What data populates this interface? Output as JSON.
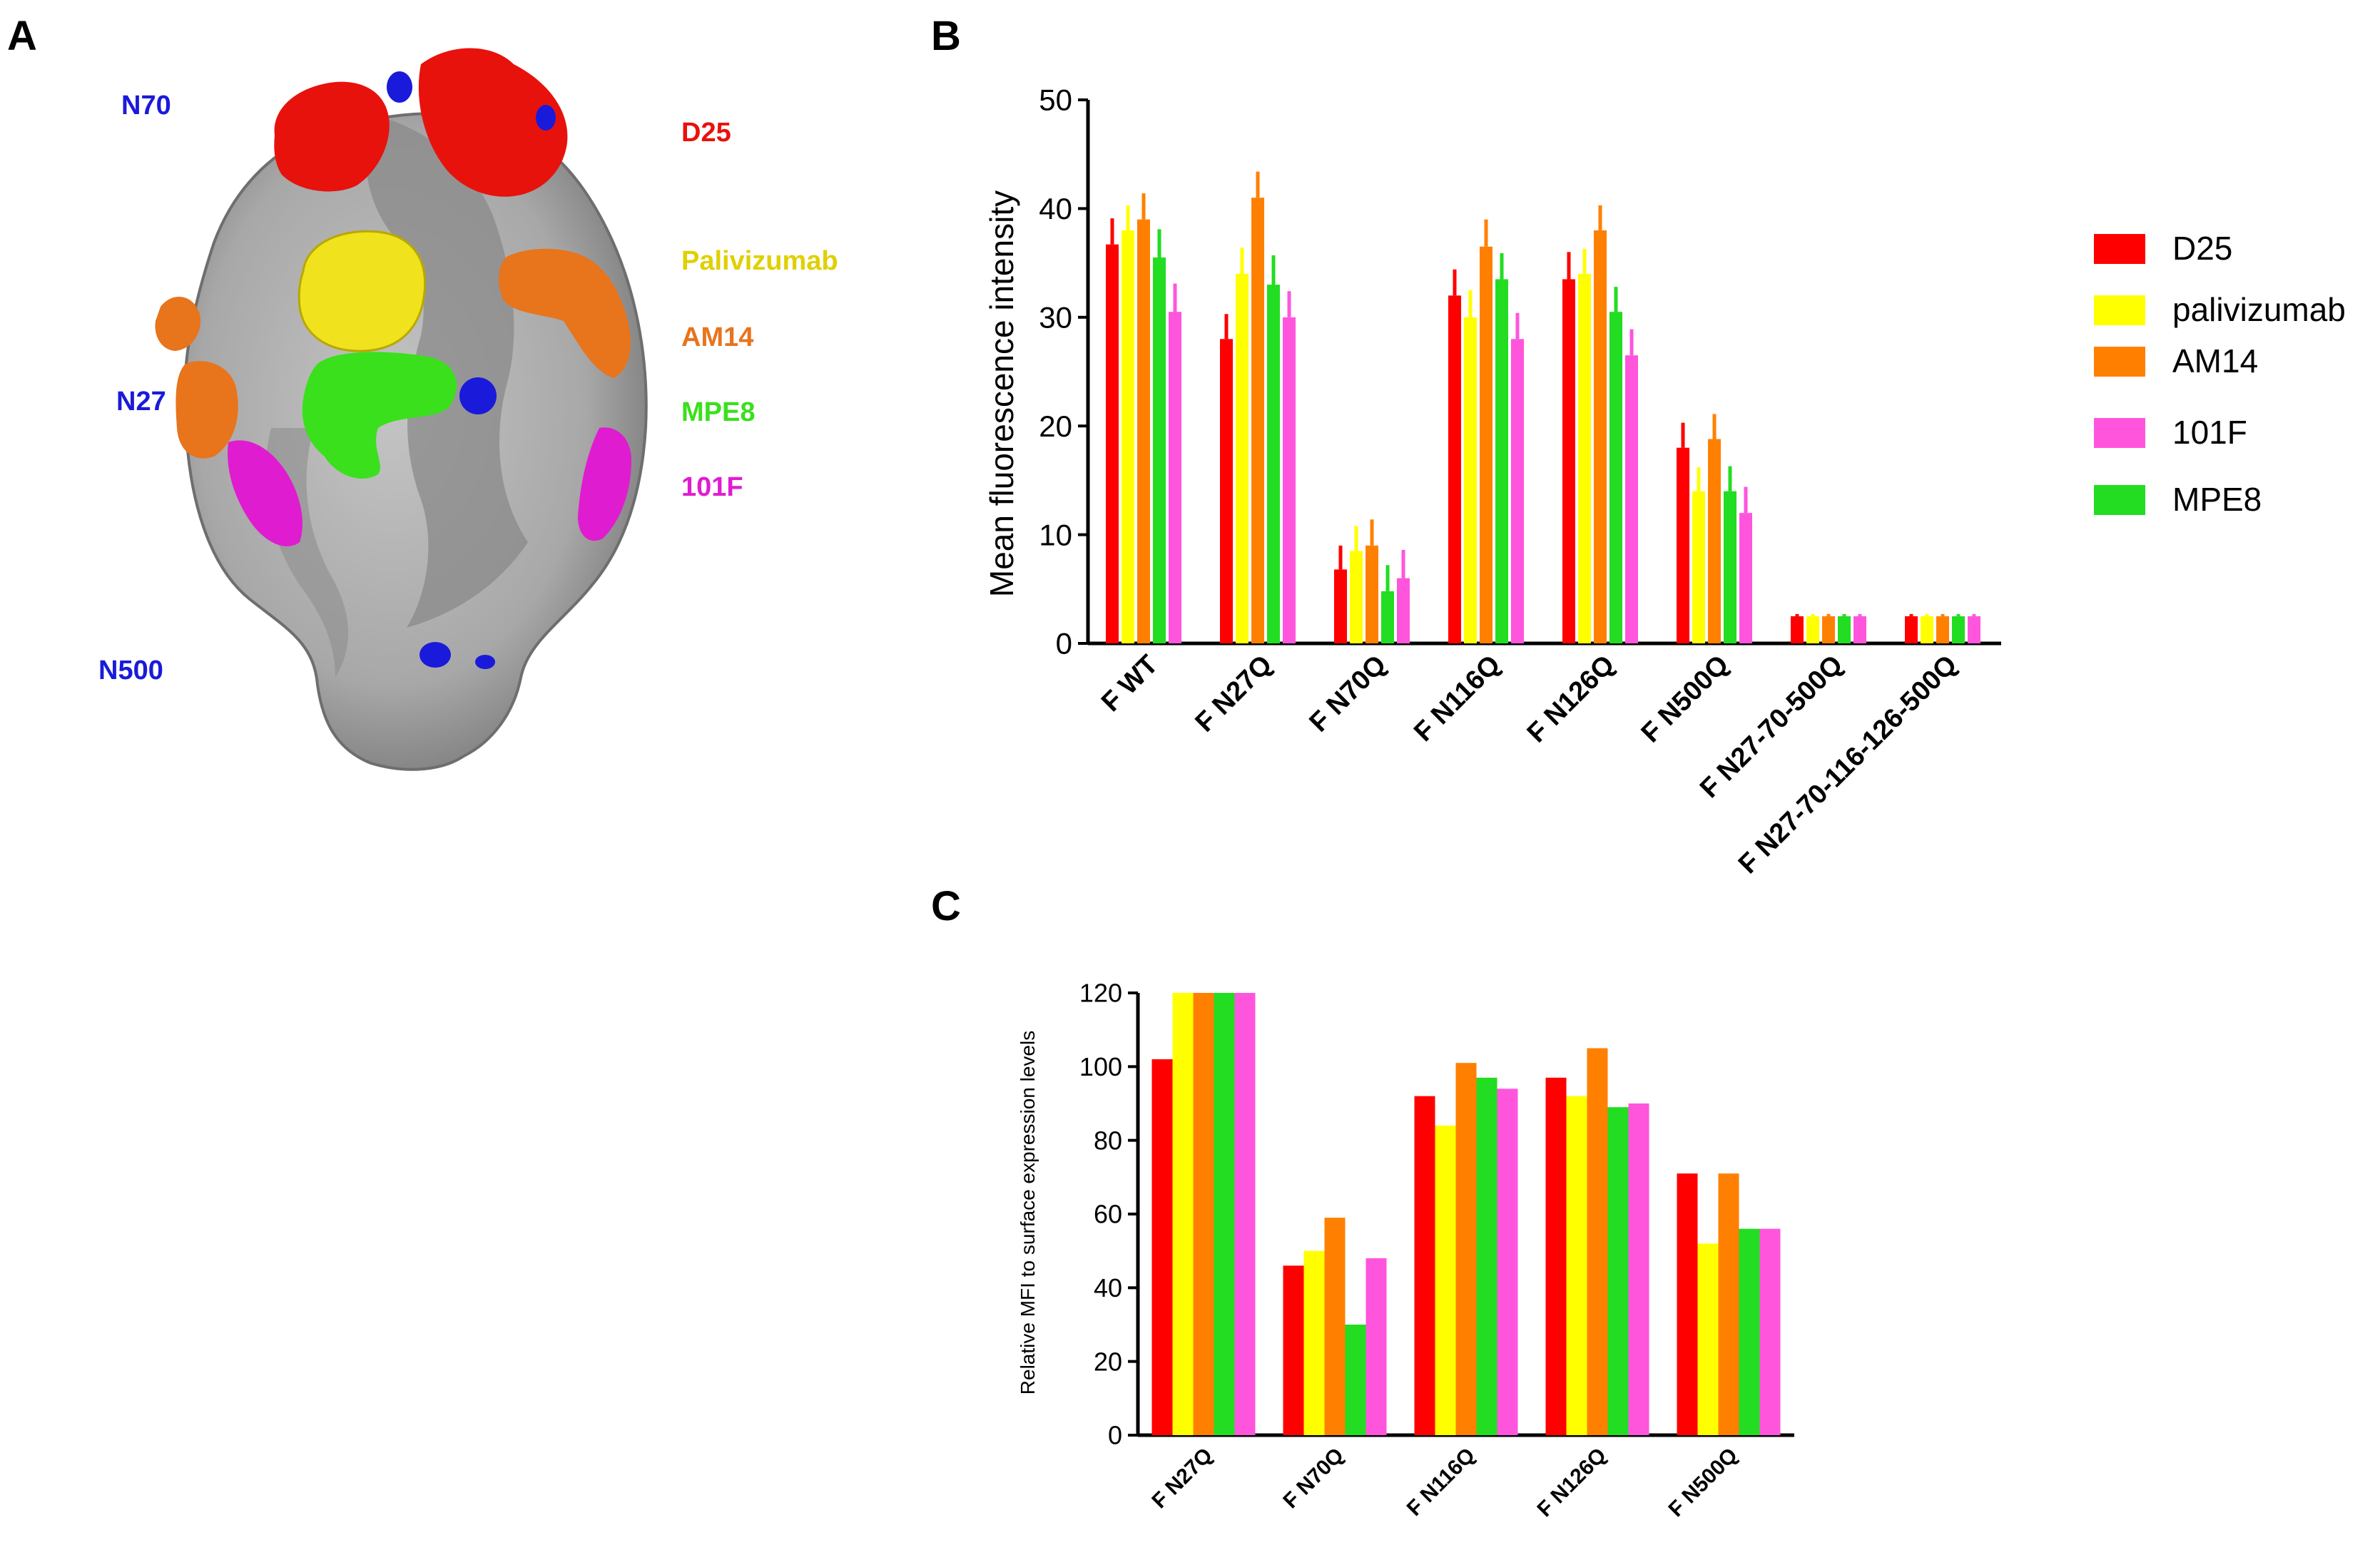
{
  "panel_labels": {
    "a": "A",
    "b": "B",
    "c": "C"
  },
  "structure": {
    "glycan_sites": [
      "N70",
      "N27",
      "N500"
    ],
    "epitopes": [
      "D25",
      "Palivizumab",
      "AM14",
      "MPE8",
      "101F"
    ],
    "colors": {
      "glycan": "#1a1adb",
      "D25": "#e8120c",
      "Palivizumab": "#f0e21c",
      "AM14": "#e8741c",
      "MPE8": "#3ae01c",
      "101F": "#e01cd0",
      "surface_light": "#b4b4b4",
      "surface_dark": "#7c7c7c"
    }
  },
  "legend": {
    "entries": [
      {
        "label": "D25",
        "color": "#ff0000"
      },
      {
        "label": "palivizumab",
        "color": "#ffff00"
      },
      {
        "label": "AM14",
        "color": "#ff8000"
      },
      {
        "label": "101F",
        "color": "#ff55dd"
      },
      {
        "label": "MPE8",
        "color": "#22dd22"
      }
    ]
  },
  "chart_data": [
    {
      "type": "bar",
      "panel": "B",
      "ylabel": "Mean fluorescence intensity",
      "xlabel": "",
      "ylim": [
        0,
        50
      ],
      "yticks": [
        0,
        10,
        20,
        30,
        40,
        50
      ],
      "error_bars": true,
      "categories": [
        "F WT",
        "F N27Q",
        "F N70Q",
        "F N116Q",
        "F N126Q",
        "F N500Q",
        "F N27-70-500Q",
        "F N27-70-116-126-500Q"
      ],
      "series": [
        {
          "name": "D25",
          "color": "#ff0000",
          "values": [
            36.7,
            28.0,
            6.8,
            32.0,
            33.5,
            18.0,
            2.5,
            2.5
          ],
          "errors": [
            2.4,
            2.3,
            2.2,
            2.4,
            2.5,
            2.3,
            0.2,
            0.2
          ]
        },
        {
          "name": "palivizumab",
          "color": "#ffff00",
          "values": [
            38.0,
            34.0,
            8.5,
            30.0,
            34.0,
            14.0,
            2.5,
            2.5
          ],
          "errors": [
            2.3,
            2.4,
            2.3,
            2.5,
            2.3,
            2.2,
            0.2,
            0.2
          ]
        },
        {
          "name": "AM14",
          "color": "#ff8000",
          "values": [
            39.0,
            41.0,
            9.0,
            36.5,
            38.0,
            18.8,
            2.5,
            2.5
          ],
          "errors": [
            2.4,
            2.4,
            2.4,
            2.5,
            2.3,
            2.3,
            0.2,
            0.2
          ]
        },
        {
          "name": "MPE8",
          "color": "#22dd22",
          "values": [
            35.5,
            33.0,
            4.8,
            33.5,
            30.5,
            14.0,
            2.5,
            2.5
          ],
          "errors": [
            2.6,
            2.7,
            2.4,
            2.4,
            2.3,
            2.3,
            0.2,
            0.2
          ]
        },
        {
          "name": "101F",
          "color": "#ff55dd",
          "values": [
            30.5,
            30.0,
            6.0,
            28.0,
            26.5,
            12.0,
            2.5,
            2.5
          ],
          "errors": [
            2.6,
            2.4,
            2.6,
            2.4,
            2.4,
            2.4,
            0.2,
            0.2
          ]
        }
      ]
    },
    {
      "type": "bar",
      "panel": "C",
      "ylabel": "Relative MFI to surface expression levels",
      "xlabel": "",
      "ylim": [
        0,
        120
      ],
      "yticks": [
        0,
        20,
        40,
        60,
        80,
        100,
        120
      ],
      "categories": [
        "F N27Q",
        "F N70Q",
        "F N116Q",
        "F N126Q",
        "F N500Q"
      ],
      "series": [
        {
          "name": "D25",
          "color": "#ff0000",
          "values": [
            102,
            46,
            92,
            97,
            71
          ]
        },
        {
          "name": "palivizumab",
          "color": "#ffff00",
          "values": [
            120,
            50,
            84,
            92,
            52
          ]
        },
        {
          "name": "AM14",
          "color": "#ff8000",
          "values": [
            120,
            59,
            101,
            105,
            71
          ]
        },
        {
          "name": "MPE8",
          "color": "#22dd22",
          "values": [
            120,
            30,
            97,
            89,
            56
          ]
        },
        {
          "name": "101F",
          "color": "#ff55dd",
          "values": [
            120,
            48,
            94,
            90,
            56
          ]
        }
      ]
    }
  ]
}
